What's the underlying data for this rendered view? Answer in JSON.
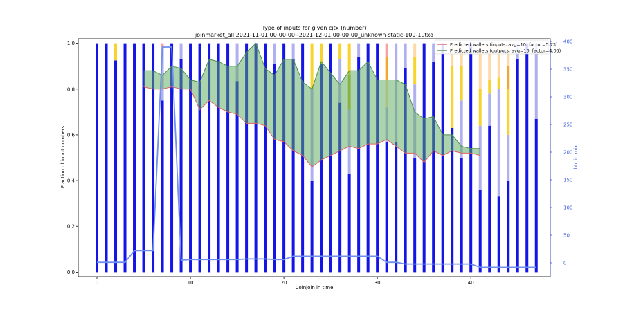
{
  "chart_data": {
    "type": "bar",
    "title": "Type of inputs for given cjtx (number)",
    "subtitle": "joinmarket_all 2021-11-01 00-00-00--2021-12-01 00-00-00_unknown-static-100-1utxo",
    "xlabel": "Coinjoin in time",
    "ylabel": "Fraction of input numbers",
    "y2label": "btc in mix",
    "xlim": [
      -2,
      48.5
    ],
    "ylim": [
      -0.02,
      1.02
    ],
    "y2lim": [
      -25,
      405
    ],
    "xticks": [
      0,
      10,
      20,
      30,
      40
    ],
    "yticks": [
      0.0,
      0.2,
      0.4,
      0.6,
      0.8,
      1.0
    ],
    "y2ticks": [
      0,
      50,
      100,
      150,
      200,
      250,
      300,
      350,
      400
    ],
    "grid": false,
    "legend_position": "top-right",
    "legend": [
      {
        "label": "Predicted wallets (inputs, avg=10, factor=5.73)",
        "color": "#e07070"
      },
      {
        "label": "Predicted wallets (outputs, avg=10, factor=4.05)",
        "color": "#5a9a5a"
      }
    ],
    "colors": {
      "fresh": "#1414e6",
      "remix": "#b0b0f0",
      "other_a": "#f6d32d",
      "other_b": "#ffd8a8",
      "other_c": "#f5a3a3",
      "other_d": "#f0a830",
      "other_e": "#b8b830",
      "inputs_line": "#e06060",
      "outputs_line": "#4a8f4a",
      "band_fill": "#5aaa5a",
      "btc_line": "#6f8ff0",
      "right_axis": "#3b5bdb"
    },
    "stacked_bars": [
      {
        "x": 0,
        "segments": [
          {
            "k": "fresh",
            "v": 1.0
          }
        ]
      },
      {
        "x": 1,
        "segments": [
          {
            "k": "fresh",
            "v": 1.0
          }
        ]
      },
      {
        "x": 2,
        "segments": [
          {
            "k": "fresh",
            "v": 0.925
          },
          {
            "k": "other_a",
            "v": 0.075
          }
        ]
      },
      {
        "x": 3,
        "segments": [
          {
            "k": "fresh",
            "v": 1.0
          }
        ]
      },
      {
        "x": 4,
        "segments": [
          {
            "k": "fresh",
            "v": 1.0
          }
        ]
      },
      {
        "x": 5,
        "segments": [
          {
            "k": "fresh",
            "v": 1.0
          }
        ]
      },
      {
        "x": 6,
        "segments": [
          {
            "k": "fresh",
            "v": 1.0
          }
        ]
      },
      {
        "x": 7,
        "segments": [
          {
            "k": "fresh",
            "v": 0.75
          },
          {
            "k": "remix",
            "v": 0.23
          },
          {
            "k": "other_c",
            "v": 0.02
          }
        ]
      },
      {
        "x": 8,
        "segments": [
          {
            "k": "fresh",
            "v": 1.0
          }
        ]
      },
      {
        "x": 9,
        "segments": [
          {
            "k": "fresh",
            "v": 0.93
          },
          {
            "k": "remix",
            "v": 0.07
          }
        ]
      },
      {
        "x": 10,
        "segments": [
          {
            "k": "fresh",
            "v": 1.0
          }
        ]
      },
      {
        "x": 11,
        "segments": [
          {
            "k": "fresh",
            "v": 1.0
          }
        ]
      },
      {
        "x": 12,
        "segments": [
          {
            "k": "fresh",
            "v": 1.0
          }
        ]
      },
      {
        "x": 13,
        "segments": [
          {
            "k": "fresh",
            "v": 1.0
          }
        ]
      },
      {
        "x": 14,
        "segments": [
          {
            "k": "fresh",
            "v": 1.0
          }
        ]
      },
      {
        "x": 15,
        "segments": [
          {
            "k": "fresh",
            "v": 0.835
          },
          {
            "k": "remix",
            "v": 0.165
          }
        ]
      },
      {
        "x": 16,
        "segments": [
          {
            "k": "fresh",
            "v": 1.0
          }
        ]
      },
      {
        "x": 17,
        "segments": [
          {
            "k": "fresh",
            "v": 1.0
          }
        ]
      },
      {
        "x": 18,
        "segments": [
          {
            "k": "fresh",
            "v": 1.0
          }
        ]
      },
      {
        "x": 19,
        "segments": [
          {
            "k": "fresh",
            "v": 0.91
          },
          {
            "k": "remix",
            "v": 0.09
          }
        ]
      },
      {
        "x": 20,
        "segments": [
          {
            "k": "fresh",
            "v": 1.0
          }
        ]
      },
      {
        "x": 21,
        "segments": [
          {
            "k": "fresh",
            "v": 0.93
          },
          {
            "k": "remix",
            "v": 0.07
          }
        ]
      },
      {
        "x": 22,
        "segments": [
          {
            "k": "fresh",
            "v": 1.0
          }
        ]
      },
      {
        "x": 23,
        "segments": [
          {
            "k": "fresh",
            "v": 0.4
          },
          {
            "k": "remix",
            "v": 0.4
          },
          {
            "k": "other_a",
            "v": 0.2
          }
        ]
      },
      {
        "x": 24,
        "segments": [
          {
            "k": "fresh",
            "v": 0.91
          },
          {
            "k": "other_a",
            "v": 0.09
          }
        ]
      },
      {
        "x": 25,
        "segments": [
          {
            "k": "fresh",
            "v": 1.0
          }
        ]
      },
      {
        "x": 26,
        "segments": [
          {
            "k": "fresh",
            "v": 0.74
          },
          {
            "k": "remix",
            "v": 0.19
          },
          {
            "k": "other_a",
            "v": 0.07
          }
        ]
      },
      {
        "x": 27,
        "segments": [
          {
            "k": "fresh",
            "v": 0.43
          },
          {
            "k": "remix",
            "v": 0.28
          },
          {
            "k": "other_e",
            "v": 0.15
          },
          {
            "k": "other_a",
            "v": 0.14
          }
        ]
      },
      {
        "x": 28,
        "segments": [
          {
            "k": "fresh",
            "v": 0.94
          },
          {
            "k": "remix",
            "v": 0.06
          }
        ]
      },
      {
        "x": 29,
        "segments": [
          {
            "k": "fresh",
            "v": 1.0
          }
        ]
      },
      {
        "x": 30,
        "segments": [
          {
            "k": "fresh",
            "v": 1.0
          }
        ]
      },
      {
        "x": 31,
        "segments": [
          {
            "k": "fresh",
            "v": 0.57
          },
          {
            "k": "remix",
            "v": 0.15
          },
          {
            "k": "other_b",
            "v": 0.12
          },
          {
            "k": "other_d",
            "v": 0.1
          },
          {
            "k": "other_c",
            "v": 0.06
          }
        ]
      },
      {
        "x": 32,
        "segments": [
          {
            "k": "fresh",
            "v": 0.57
          },
          {
            "k": "remix",
            "v": 0.43
          }
        ]
      },
      {
        "x": 33,
        "segments": [
          {
            "k": "fresh",
            "v": 0.89
          },
          {
            "k": "remix",
            "v": 0.11
          }
        ]
      },
      {
        "x": 34,
        "segments": [
          {
            "k": "fresh",
            "v": 0.5
          },
          {
            "k": "remix",
            "v": 0.32
          },
          {
            "k": "other_a",
            "v": 0.12
          },
          {
            "k": "other_b",
            "v": 0.06
          }
        ]
      },
      {
        "x": 35,
        "segments": [
          {
            "k": "fresh",
            "v": 1.0
          }
        ]
      },
      {
        "x": 36,
        "segments": [
          {
            "k": "fresh",
            "v": 0.92
          },
          {
            "k": "remix",
            "v": 0.08
          }
        ]
      },
      {
        "x": 37,
        "segments": [
          {
            "k": "fresh",
            "v": 1.0
          }
        ]
      },
      {
        "x": 38,
        "segments": [
          {
            "k": "fresh",
            "v": 0.63
          },
          {
            "k": "other_a",
            "v": 0.27
          },
          {
            "k": "other_b",
            "v": 0.1
          }
        ]
      },
      {
        "x": 39,
        "segments": [
          {
            "k": "fresh",
            "v": 0.5
          },
          {
            "k": "remix",
            "v": 0.25
          },
          {
            "k": "other_a",
            "v": 0.15
          },
          {
            "k": "other_b",
            "v": 0.1
          }
        ]
      },
      {
        "x": 40,
        "segments": [
          {
            "k": "fresh",
            "v": 1.0
          }
        ]
      },
      {
        "x": 41,
        "segments": [
          {
            "k": "fresh",
            "v": 0.36
          },
          {
            "k": "remix",
            "v": 0.28
          },
          {
            "k": "other_a",
            "v": 0.16
          },
          {
            "k": "other_b",
            "v": 0.2
          }
        ]
      },
      {
        "x": 42,
        "segments": [
          {
            "k": "fresh",
            "v": 0.64
          },
          {
            "k": "remix",
            "v": 0.14
          },
          {
            "k": "other_a",
            "v": 0.06
          },
          {
            "k": "other_b",
            "v": 0.16
          }
        ]
      },
      {
        "x": 43,
        "segments": [
          {
            "k": "fresh",
            "v": 0.33
          },
          {
            "k": "remix",
            "v": 0.47
          },
          {
            "k": "other_a",
            "v": 0.05
          },
          {
            "k": "other_b",
            "v": 0.15
          }
        ]
      },
      {
        "x": 44,
        "segments": [
          {
            "k": "fresh",
            "v": 0.4
          },
          {
            "k": "remix",
            "v": 0.2
          },
          {
            "k": "other_a",
            "v": 0.2
          },
          {
            "k": "other_d",
            "v": 0.1
          },
          {
            "k": "other_b",
            "v": 0.1
          }
        ]
      },
      {
        "x": 45,
        "segments": [
          {
            "k": "fresh",
            "v": 0.93
          },
          {
            "k": "remix",
            "v": 0.07
          }
        ]
      },
      {
        "x": 46,
        "segments": [
          {
            "k": "fresh",
            "v": 1.0
          }
        ]
      },
      {
        "x": 47,
        "segments": [
          {
            "k": "fresh",
            "v": 0.67
          },
          {
            "k": "remix",
            "v": 0.33
          }
        ]
      }
    ],
    "series": [
      {
        "name": "Predicted wallets (inputs, avg=10, factor=5.73)",
        "x": [
          5,
          6,
          7,
          8,
          9,
          10,
          11,
          12,
          13,
          14,
          15,
          16,
          17,
          18,
          19,
          20,
          21,
          22,
          23,
          24,
          25,
          26,
          27,
          28,
          29,
          30,
          31,
          32,
          33,
          34,
          35,
          36,
          37,
          38,
          39,
          40,
          41
        ],
        "values": [
          0.81,
          0.8,
          0.8,
          0.81,
          0.8,
          0.8,
          0.71,
          0.75,
          0.72,
          0.7,
          0.69,
          0.65,
          0.65,
          0.64,
          0.58,
          0.57,
          0.53,
          0.51,
          0.46,
          0.49,
          0.51,
          0.53,
          0.55,
          0.54,
          0.56,
          0.56,
          0.58,
          0.55,
          0.52,
          0.52,
          0.48,
          0.53,
          0.51,
          0.53,
          0.52,
          0.52,
          0.51
        ]
      },
      {
        "name": "Predicted wallets (outputs, avg=10, factor=4.05)",
        "x": [
          5,
          6,
          7,
          8,
          9,
          10,
          11,
          12,
          13,
          14,
          15,
          16,
          17,
          18,
          19,
          20,
          21,
          22,
          23,
          24,
          25,
          26,
          27,
          28,
          29,
          30,
          31,
          32,
          33,
          34,
          35,
          36,
          37,
          38,
          39,
          40,
          41
        ],
        "values": [
          0.88,
          0.88,
          0.86,
          0.9,
          0.89,
          0.84,
          0.83,
          0.93,
          0.92,
          0.9,
          0.9,
          0.96,
          1.0,
          0.89,
          0.86,
          0.93,
          0.93,
          0.83,
          0.8,
          0.92,
          0.87,
          0.82,
          0.88,
          0.88,
          0.92,
          0.84,
          0.84,
          0.84,
          0.82,
          0.7,
          0.67,
          0.68,
          0.6,
          0.6,
          0.55,
          0.54,
          0.54
        ]
      },
      {
        "name": "btc in mix",
        "axis": "right",
        "x": [
          0,
          1,
          2,
          3,
          4,
          5,
          6,
          7,
          8,
          9,
          10,
          11,
          12,
          13,
          14,
          15,
          16,
          17,
          18,
          19,
          20,
          21,
          22,
          23,
          24,
          25,
          26,
          27,
          28,
          29,
          30,
          31,
          32,
          33,
          34,
          35,
          36,
          37,
          38,
          39,
          40,
          41,
          42,
          43,
          44,
          45,
          46,
          47
        ],
        "values": [
          1,
          1,
          1,
          1,
          22,
          22,
          22,
          390,
          390,
          5,
          6,
          6,
          6,
          6,
          6,
          6,
          7,
          7,
          7,
          6,
          6,
          12,
          12,
          12,
          12,
          12,
          12,
          12,
          12,
          12,
          12,
          1,
          1,
          -2,
          -2,
          -2,
          -2,
          -2,
          -2,
          -2,
          -2,
          -8,
          -8,
          -8,
          -8,
          -8,
          -8,
          -8
        ]
      }
    ]
  }
}
